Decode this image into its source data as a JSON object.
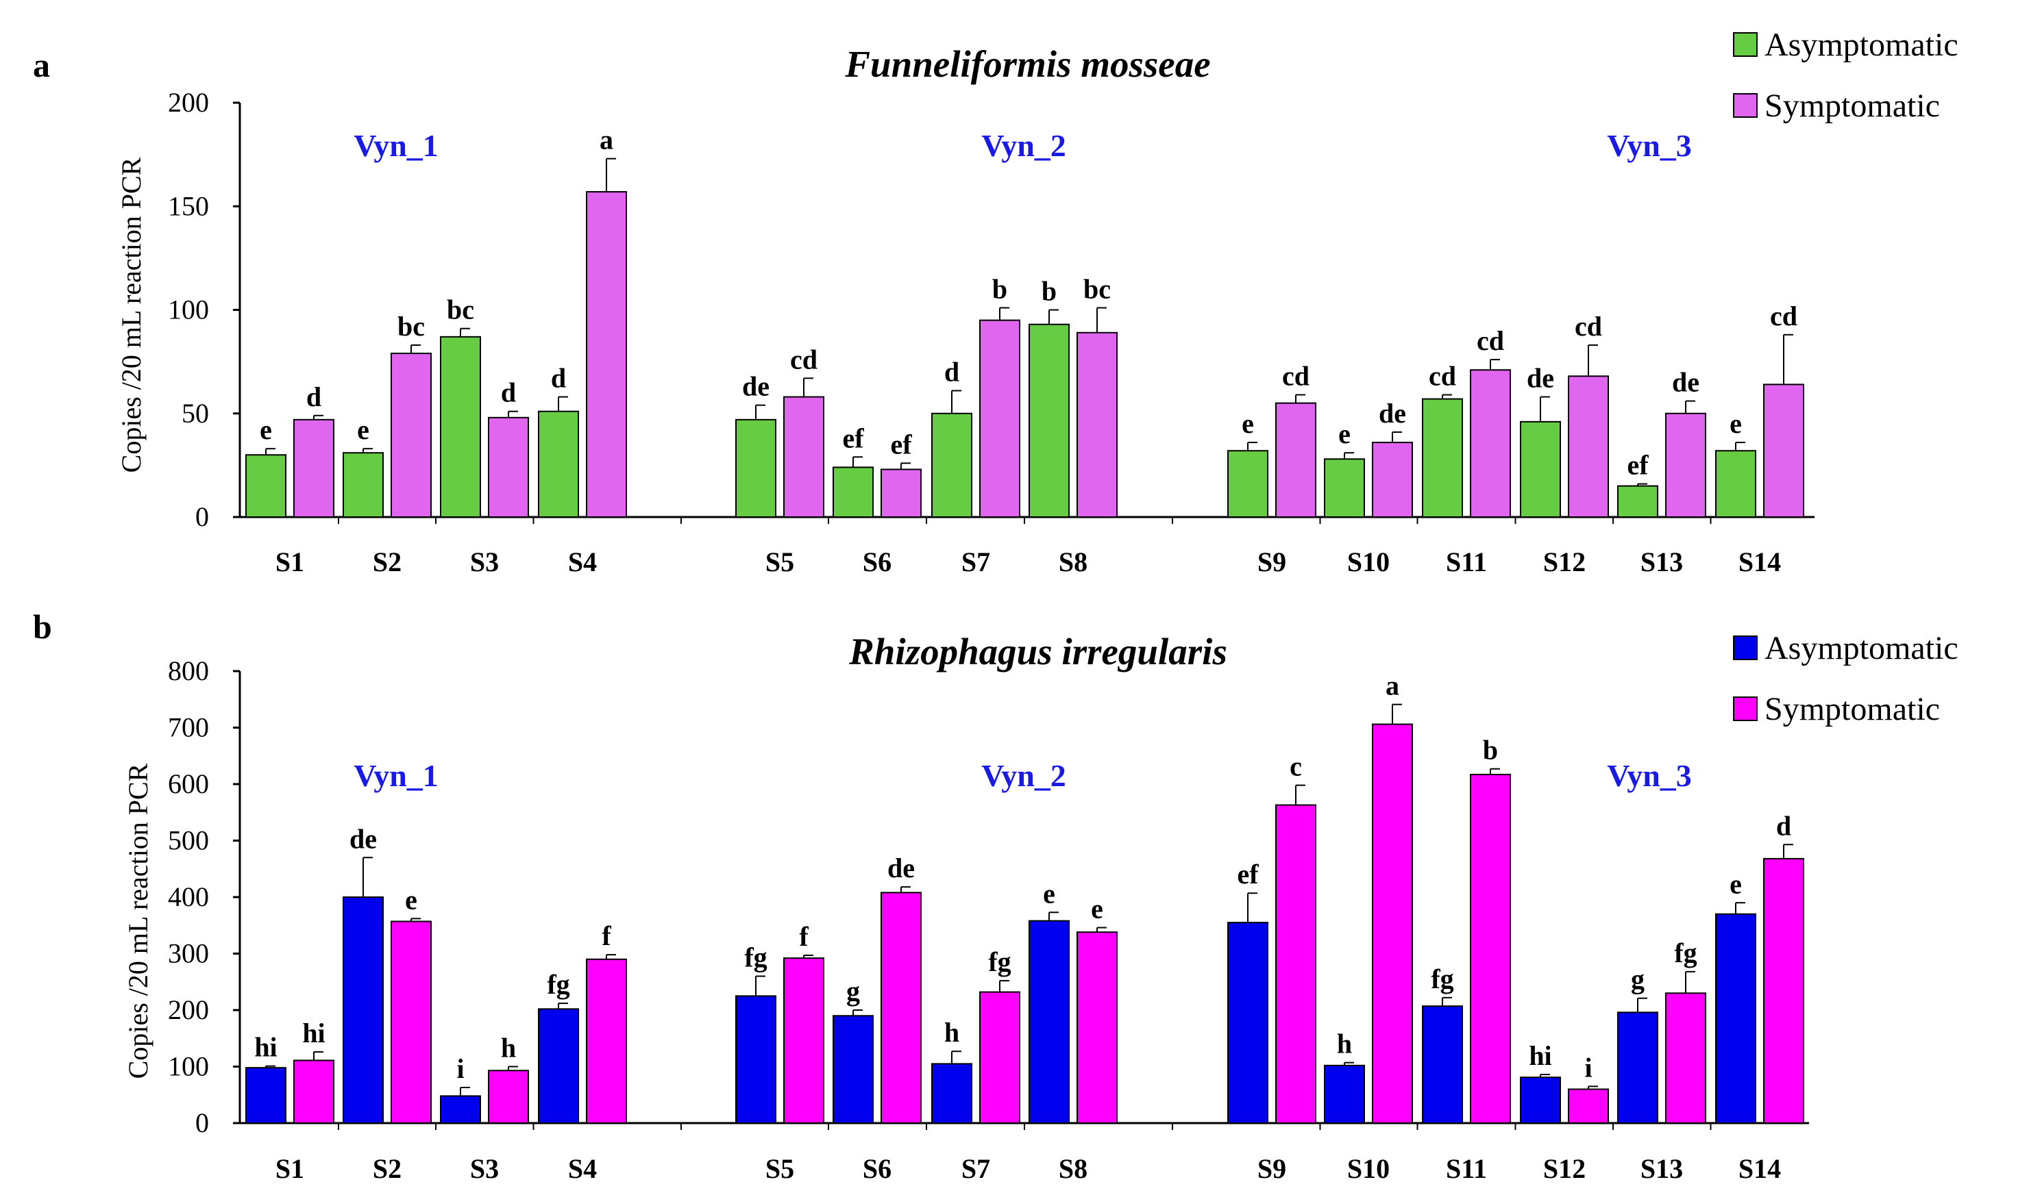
{
  "chart_data": [
    {
      "type": "bar",
      "panel": "a",
      "title": "Funneliformis mosseae",
      "xlabel": "",
      "ylabel": "Copies /20 mL reaction PCR",
      "ylim": [
        0,
        200
      ],
      "yticks": [
        0,
        50,
        100,
        150,
        200
      ],
      "grid": false,
      "legend_position": "top-right",
      "groups": [
        {
          "label": "Vyn_1",
          "categories": [
            "S1",
            "S2",
            "S3",
            "S4"
          ]
        },
        {
          "label": "Vyn_2",
          "categories": [
            "S5",
            "S6",
            "S7",
            "S8"
          ]
        },
        {
          "label": "Vyn_3",
          "categories": [
            "S9",
            "S10",
            "S11",
            "S12",
            "S13",
            "S14"
          ]
        }
      ],
      "categories": [
        "S1",
        "S2",
        "S3",
        "S4",
        "S5",
        "S6",
        "S7",
        "S8",
        "S9",
        "S10",
        "S11",
        "S12",
        "S13",
        "S14"
      ],
      "series": [
        {
          "name": "Asymptomatic",
          "color": "#66cc44",
          "values": [
            30,
            31,
            87,
            51,
            47,
            24,
            50,
            93,
            32,
            28,
            57,
            46,
            15,
            32
          ],
          "errors": [
            3,
            2,
            4,
            7,
            7,
            5,
            11,
            7,
            4,
            3,
            2,
            12,
            1,
            4
          ],
          "labels": [
            "e",
            "e",
            "bc",
            "d",
            "de",
            "ef",
            "d",
            "b",
            "e",
            "e",
            "cd",
            "de",
            "ef",
            "e"
          ]
        },
        {
          "name": "Symptomatic",
          "color": "#e066f0",
          "values": [
            47,
            79,
            48,
            157,
            58,
            23,
            95,
            89,
            55,
            36,
            71,
            68,
            50,
            64
          ],
          "errors": [
            2,
            4,
            3,
            16,
            9,
            3,
            6,
            12,
            4,
            5,
            5,
            15,
            6,
            24
          ],
          "labels": [
            "d",
            "bc",
            "d",
            "a",
            "cd",
            "ef",
            "b",
            "bc",
            "cd",
            "de",
            "cd",
            "cd",
            "de",
            "cd"
          ]
        }
      ]
    },
    {
      "type": "bar",
      "panel": "b",
      "title": "Rhizophagus irregularis",
      "xlabel": "",
      "ylabel": "Copies /20 mL reaction PCR",
      "ylim": [
        0,
        800
      ],
      "yticks": [
        0,
        100,
        200,
        300,
        400,
        500,
        600,
        700,
        800
      ],
      "grid": false,
      "legend_position": "top-right",
      "groups": [
        {
          "label": "Vyn_1",
          "categories": [
            "S1",
            "S2",
            "S3",
            "S4"
          ]
        },
        {
          "label": "Vyn_2",
          "categories": [
            "S5",
            "S6",
            "S7",
            "S8"
          ]
        },
        {
          "label": "Vyn_3",
          "categories": [
            "S9",
            "S10",
            "S11",
            "S12",
            "S13",
            "S14"
          ]
        }
      ],
      "categories": [
        "S1",
        "S2",
        "S3",
        "S4",
        "S5",
        "S6",
        "S7",
        "S8",
        "S9",
        "S10",
        "S11",
        "S12",
        "S13",
        "S14"
      ],
      "series": [
        {
          "name": "Asymptomatic",
          "color": "#0000ee",
          "values": [
            98,
            400,
            48,
            202,
            225,
            190,
            105,
            358,
            355,
            102,
            207,
            81,
            196,
            370
          ],
          "errors": [
            3,
            70,
            15,
            10,
            35,
            10,
            22,
            15,
            52,
            5,
            15,
            5,
            25,
            20
          ],
          "labels": [
            "hi",
            "de",
            "i",
            "fg",
            "fg",
            "g",
            "h",
            "e",
            "ef",
            "h",
            "fg",
            "hi",
            "g",
            "e"
          ]
        },
        {
          "name": "Symptomatic",
          "color": "#ff00ff",
          "values": [
            111,
            357,
            93,
            290,
            292,
            408,
            232,
            338,
            563,
            706,
            617,
            60,
            230,
            468
          ],
          "errors": [
            15,
            5,
            7,
            8,
            5,
            10,
            20,
            8,
            35,
            35,
            10,
            5,
            38,
            25
          ],
          "labels": [
            "hi",
            "e",
            "h",
            "f",
            "f",
            "de",
            "fg",
            "e",
            "c",
            "a",
            "b",
            "i",
            "fg",
            "d"
          ]
        }
      ]
    }
  ]
}
